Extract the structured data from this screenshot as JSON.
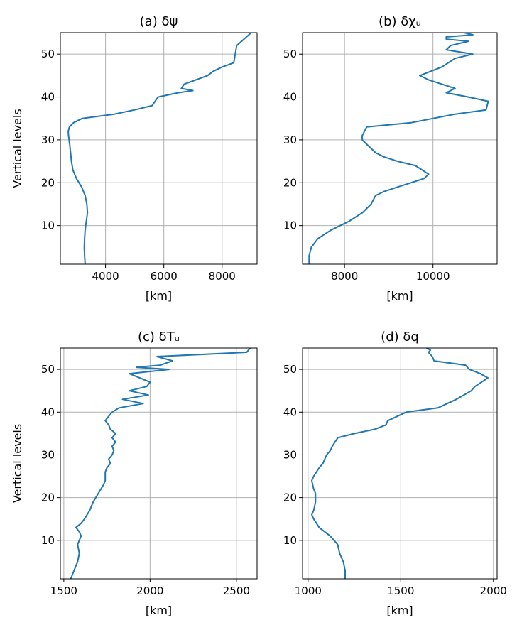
{
  "chart_data": [
    {
      "type": "line",
      "title": "(a) δψ",
      "xlabel": "[km]",
      "ylabel": "Vertical levels",
      "xlim": [
        2450,
        9200
      ],
      "ylim": [
        1,
        55
      ],
      "xticks": [
        4000,
        6000,
        8000
      ],
      "yticks": [
        10,
        20,
        30,
        40,
        50
      ],
      "grid": true,
      "color": "#1f77b4",
      "series": [
        {
          "x": [
            3300,
            3280,
            3270,
            3280,
            3300,
            3340,
            3380,
            3360,
            3300,
            3180,
            3000,
            2880,
            2830,
            2800,
            2770,
            2730,
            2720,
            2760,
            2900,
            3200,
            4300,
            5000,
            5600,
            5700,
            5800,
            6500,
            7000,
            6600,
            6700,
            7100,
            7500,
            7700,
            8000,
            8400,
            8450,
            8500,
            9000
          ],
          "y": [
            1,
            3,
            5,
            7,
            9,
            11,
            13,
            15,
            17,
            19,
            21,
            23,
            25,
            27,
            29,
            31,
            32,
            33,
            34,
            35,
            36,
            37,
            38,
            39,
            40,
            41,
            41.5,
            42,
            43,
            44,
            45,
            46,
            47,
            48,
            50,
            52,
            55
          ]
        }
      ]
    },
    {
      "type": "line",
      "title": "(b) δχᵤ",
      "xlabel": "[km]",
      "ylabel": "",
      "xlim": [
        7050,
        11450
      ],
      "ylim": [
        1,
        55
      ],
      "xticks": [
        8000,
        10000
      ],
      "yticks": [
        10,
        20,
        30,
        40,
        50
      ],
      "grid": true,
      "color": "#1f77b4",
      "series": [
        {
          "x": [
            7200,
            7200,
            7250,
            7400,
            7700,
            8100,
            8400,
            8600,
            8700,
            8900,
            9200,
            9500,
            9800,
            9900,
            9600,
            9200,
            8900,
            8700,
            8500,
            8400,
            8400,
            8500,
            9500,
            10500,
            11200,
            11250,
            10800,
            10300,
            10500,
            10200,
            9900,
            9700,
            10200,
            10500,
            10900,
            10300,
            10400,
            10800,
            10300,
            10300,
            10900,
            10700
          ],
          "y": [
            1,
            3,
            5,
            7,
            9,
            11,
            13,
            15,
            17,
            18,
            19,
            20,
            21,
            22,
            24,
            25,
            26,
            27,
            29,
            30,
            31,
            33,
            34,
            36,
            37,
            39,
            40,
            41,
            42,
            43,
            44,
            45,
            47,
            49,
            50,
            51,
            52,
            53,
            53.5,
            54,
            54.5,
            55
          ]
        }
      ]
    },
    {
      "type": "line",
      "title": "(c) δTᵤ",
      "xlabel": "[km]",
      "ylabel": "Vertical levels",
      "xlim": [
        1480,
        2620
      ],
      "ylim": [
        1,
        55
      ],
      "xticks": [
        1500,
        2000,
        2500
      ],
      "yticks": [
        10,
        20,
        30,
        40,
        50
      ],
      "grid": true,
      "color": "#1f77b4",
      "series": [
        {
          "x": [
            1540,
            1560,
            1580,
            1590,
            1580,
            1590,
            1600,
            1590,
            1570,
            1600,
            1620,
            1650,
            1670,
            1700,
            1730,
            1740,
            1740,
            1750,
            1770,
            1760,
            1780,
            1790,
            1780,
            1800,
            1780,
            1800,
            1770,
            1760,
            1740,
            1760,
            1780,
            1820,
            1960,
            1840,
            1990,
            1880,
            1980,
            2000,
            1880,
            2110,
            1920,
            2060,
            2130,
            2040,
            2560,
            2580
          ],
          "y": [
            1,
            3,
            5,
            7,
            9,
            10,
            11,
            12,
            13,
            14,
            15,
            17,
            19,
            21,
            23,
            24,
            26,
            27,
            28,
            29,
            30,
            31,
            32,
            33,
            34,
            35,
            36,
            37,
            38,
            39,
            40,
            41,
            42,
            43,
            44,
            45,
            46,
            47,
            49,
            50,
            50.5,
            51,
            52,
            53,
            54,
            55
          ]
        }
      ]
    },
    {
      "type": "line",
      "title": "(d) δq",
      "xlabel": "[km]",
      "ylabel": "",
      "xlim": [
        970,
        2020
      ],
      "ylim": [
        1,
        55
      ],
      "xticks": [
        1000,
        1500,
        2000
      ],
      "yticks": [
        10,
        20,
        30,
        40,
        50
      ],
      "grid": true,
      "color": "#1f77b4",
      "series": [
        {
          "x": [
            1200,
            1200,
            1190,
            1170,
            1160,
            1120,
            1060,
            1030,
            1020,
            1030,
            1040,
            1040,
            1030,
            1020,
            1030,
            1060,
            1080,
            1090,
            1100,
            1120,
            1130,
            1160,
            1250,
            1360,
            1420,
            1430,
            1530,
            1700,
            1800,
            1880,
            1900,
            1970,
            1930,
            1870,
            1850,
            1680,
            1670,
            1650,
            1660,
            1640
          ],
          "y": [
            1,
            3,
            5,
            7,
            9,
            11,
            13,
            15,
            16,
            17,
            19,
            21,
            22,
            24,
            25,
            27,
            28,
            29,
            30,
            31,
            32,
            34,
            35,
            36,
            37,
            38,
            40,
            41,
            43,
            45,
            46,
            48,
            49,
            50,
            51,
            52,
            53,
            54,
            54.5,
            55
          ]
        }
      ]
    }
  ]
}
